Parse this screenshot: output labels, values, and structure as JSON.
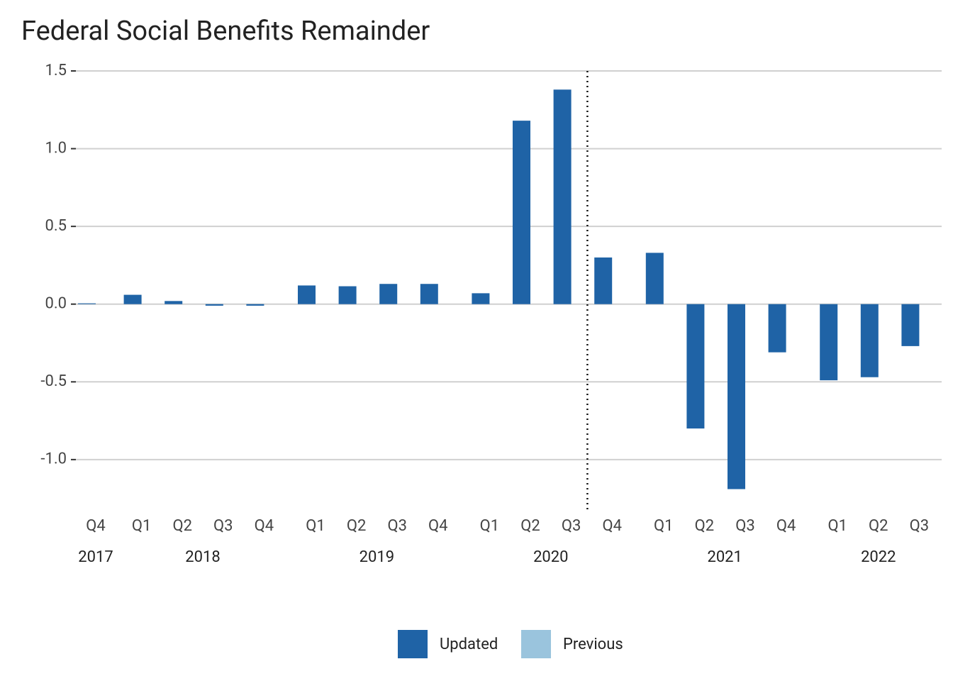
{
  "chart_data": {
    "type": "bar",
    "title": "Federal Social Benefits Remainder",
    "categories": [
      "Q4",
      "Q1",
      "Q2",
      "Q3",
      "Q4",
      "Q1",
      "Q2",
      "Q3",
      "Q4",
      "Q1",
      "Q2",
      "Q3",
      "Q4",
      "Q1",
      "Q2",
      "Q3",
      "Q4",
      "Q1",
      "Q2",
      "Q3"
    ],
    "groups": [
      {
        "label": "2017",
        "count": 1
      },
      {
        "label": "2018",
        "count": 4
      },
      {
        "label": "2019",
        "count": 4
      },
      {
        "label": "2020",
        "count": 4
      },
      {
        "label": "2021",
        "count": 4
      },
      {
        "label": "2022",
        "count": 3
      }
    ],
    "series": [
      {
        "name": "Updated",
        "color": "#1f63a6",
        "values": [
          0.005,
          0.06,
          0.02,
          -0.01,
          -0.01,
          0.12,
          0.115,
          0.13,
          0.13,
          0.07,
          1.18,
          1.38,
          0.3,
          0.33,
          -0.8,
          -1.19,
          -0.31,
          -0.49,
          -0.47,
          -0.27
        ]
      },
      {
        "name": "Previous",
        "color": "#9ac4dd",
        "values": [
          null,
          null,
          null,
          null,
          null,
          null,
          null,
          null,
          null,
          null,
          null,
          null,
          null,
          null,
          null,
          null,
          null,
          null,
          null,
          null
        ]
      }
    ],
    "divider_before": 12,
    "ylim": [
      -1.32,
      1.5
    ],
    "yticks": [
      1.5,
      {
        "value": 1,
        "label": "1.0"
      },
      0.5,
      {
        "value": 0,
        "label": "0.0"
      },
      -0.5,
      {
        "value": -1,
        "label": "-1.0"
      }
    ],
    "grid": true,
    "legend": "bottom"
  }
}
